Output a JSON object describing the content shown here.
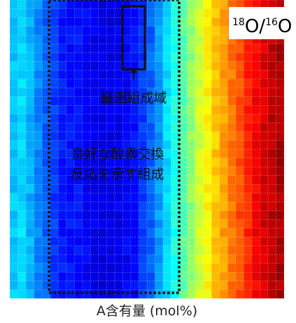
{
  "chart_data": {
    "type": "heatmap",
    "title": "",
    "xlabel": "A含有量 (mol%)",
    "ylabel": "",
    "legend_label": {
      "mass_a": "18",
      "element_a": "O",
      "separator": "/",
      "mass_b": "16",
      "element_b": "O"
    },
    "grid": true,
    "colormap": "jet",
    "value_scale": "relative (0 = low, 1 = high)",
    "column_profile": [
      0.32,
      0.34,
      0.3,
      0.26,
      0.22,
      0.18,
      0.15,
      0.14,
      0.14,
      0.12,
      0.11,
      0.1,
      0.1,
      0.11,
      0.12,
      0.14,
      0.18,
      0.22,
      0.28,
      0.34,
      0.4,
      0.46,
      0.52,
      0.58,
      0.63,
      0.68,
      0.72,
      0.76,
      0.8,
      0.84,
      0.88,
      0.91,
      0.94,
      0.96
    ],
    "annotations": {
      "optimal_region_label": "最適組成域",
      "good_region_label_line1": "良好な酸素交換",
      "good_region_label_line2": "反応を示す組成"
    }
  }
}
